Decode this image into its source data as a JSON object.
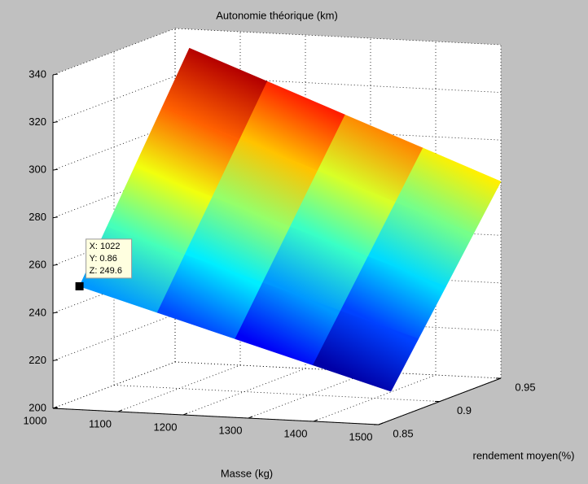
{
  "chart_data": {
    "type": "surface3d",
    "title": "Autonomie théorique (km)",
    "xlabel": "Masse (kg)",
    "ylabel": "rendement moyen(%)",
    "x": [
      1022,
      1141.5,
      1261,
      1380.5,
      1500
    ],
    "y": [
      0.86,
      0.8825,
      0.905,
      0.9275,
      0.95
    ],
    "z": [
      [
        249.6,
        240.2,
        230.8,
        221.4,
        212.0
      ],
      [
        270.2,
        260.1,
        250.0,
        239.8,
        229.7
      ],
      [
        290.8,
        279.9,
        269.1,
        258.2,
        247.3
      ],
      [
        311.4,
        299.8,
        288.2,
        276.6,
        265.0
      ],
      [
        332.0,
        319.7,
        307.3,
        295.0,
        282.6
      ]
    ],
    "colormap": "jet",
    "xlim": [
      1000,
      1500
    ],
    "xticks": [
      1000,
      1100,
      1200,
      1300,
      1400,
      1500
    ],
    "ylim": [
      0.85,
      0.95
    ],
    "yticks": [
      0.85,
      0.9,
      0.95
    ],
    "zlim": [
      200,
      340
    ],
    "zticks": [
      200,
      220,
      240,
      260,
      280,
      300,
      320,
      340
    ],
    "grid": true,
    "datatip": {
      "lines": [
        "X: 1022",
        "Y: 0.86",
        "Z: 249.6"
      ]
    }
  }
}
